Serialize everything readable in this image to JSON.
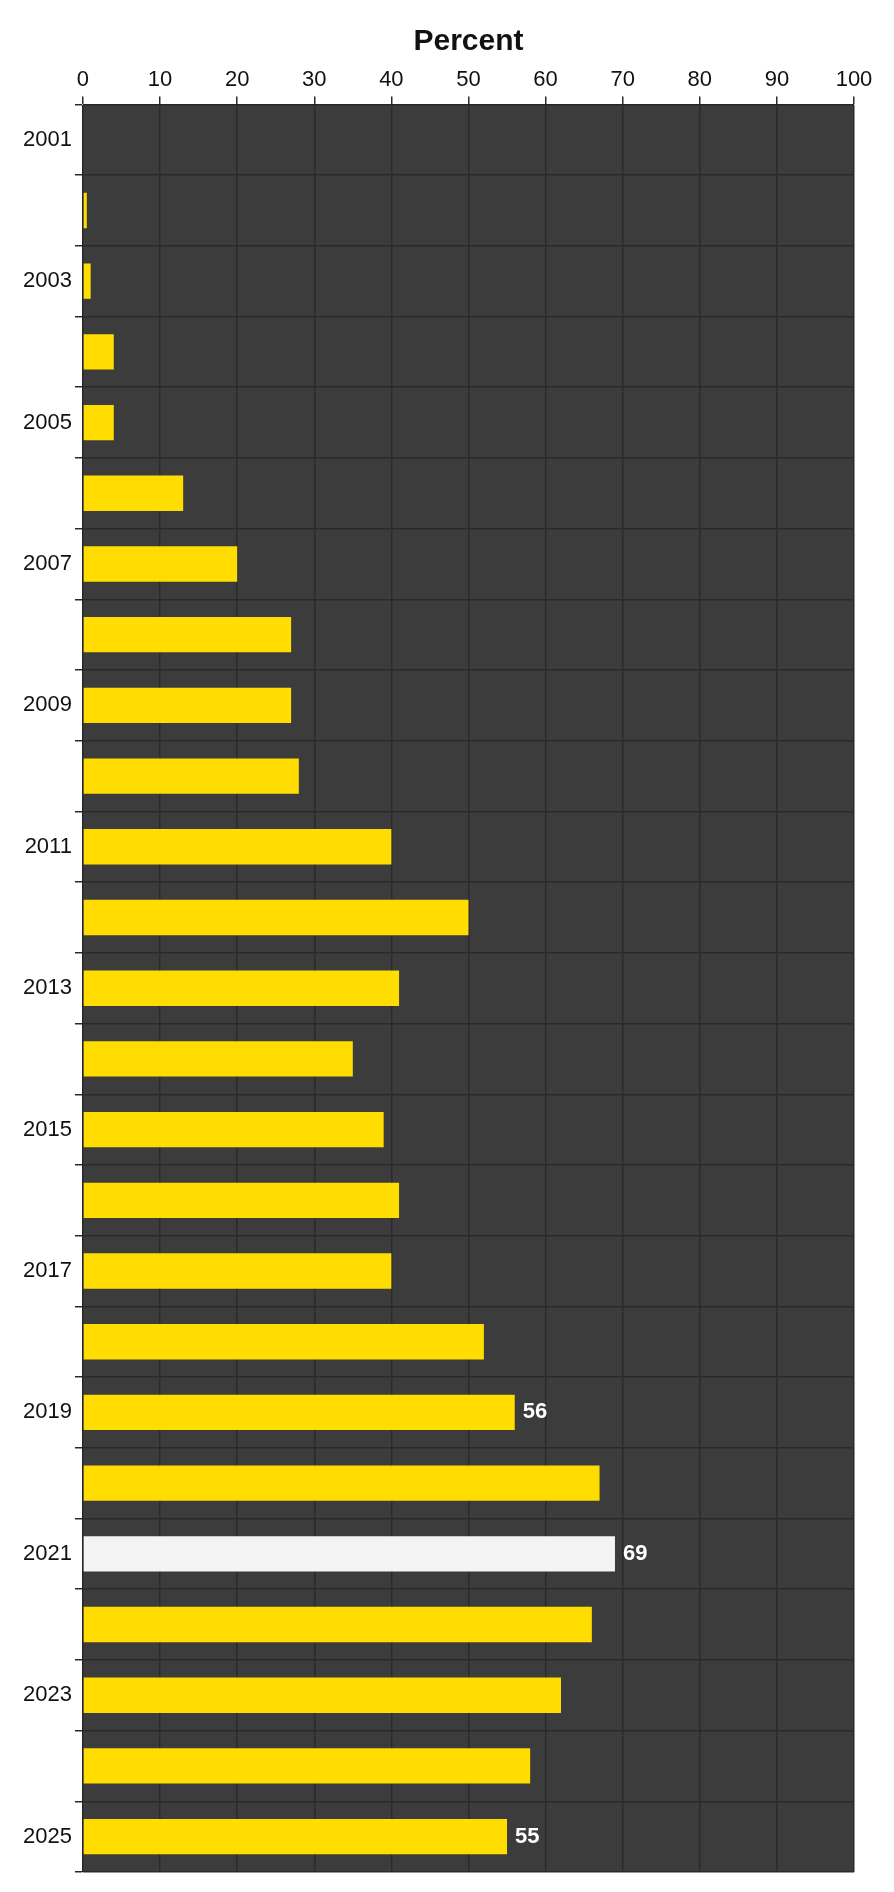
{
  "chart_data": {
    "type": "bar",
    "orientation": "horizontal",
    "xlabel": "Percent",
    "categories": [
      "2001",
      null,
      "2003",
      null,
      "2005",
      null,
      "2007",
      null,
      "2009",
      null,
      "2011",
      null,
      "2013",
      null,
      "2015",
      null,
      "2017",
      null,
      "2019",
      null,
      "2021",
      null,
      "2023",
      null,
      "2025"
    ],
    "values": [
      0,
      0.5,
      1,
      4,
      4,
      13,
      20,
      27,
      27,
      28,
      40,
      50,
      41,
      35,
      39,
      41,
      40,
      52,
      56,
      67,
      69,
      66,
      62,
      58,
      55
    ],
    "colors": [
      "#ffdd00",
      "#ffdd00",
      "#ffdd00",
      "#ffdd00",
      "#ffdd00",
      "#ffdd00",
      "#ffdd00",
      "#ffdd00",
      "#ffdd00",
      "#ffdd00",
      "#ffdd00",
      "#ffdd00",
      "#ffdd00",
      "#ffdd00",
      "#ffdd00",
      "#ffdd00",
      "#ffdd00",
      "#ffdd00",
      "#ffdd00",
      "#ffdd00",
      "#f4f4f4",
      "#ffdd00",
      "#ffdd00",
      "#ffdd00",
      "#ffdd00"
    ],
    "value_labels": [
      null,
      null,
      null,
      null,
      null,
      null,
      null,
      null,
      null,
      null,
      null,
      null,
      null,
      null,
      null,
      null,
      null,
      null,
      "56",
      null,
      "69",
      null,
      null,
      null,
      "55"
    ],
    "xlim": [
      0,
      100
    ],
    "xticks": [
      0,
      10,
      20,
      30,
      40,
      50,
      60,
      70,
      80,
      90,
      100
    ],
    "grid": true,
    "legend": false
  }
}
